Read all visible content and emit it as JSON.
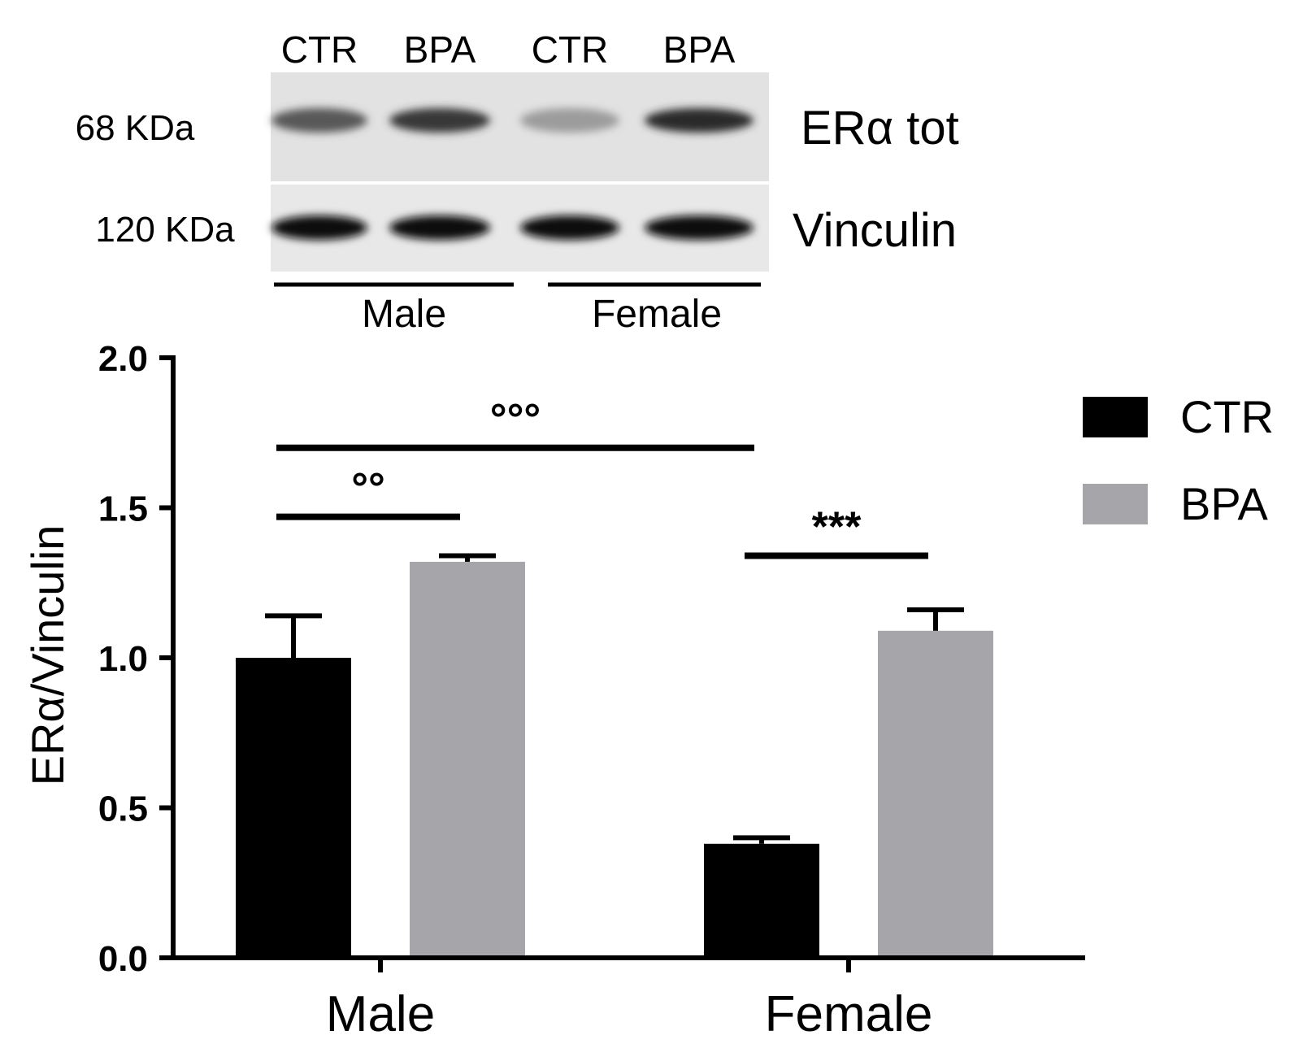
{
  "blot": {
    "lane_labels": [
      "CTR",
      "BPA",
      "CTR",
      "BPA"
    ],
    "rows": [
      {
        "kda": "68 KDa",
        "protein": "ERα tot",
        "band_intensity": [
          0.65,
          0.8,
          0.35,
          0.85
        ]
      },
      {
        "kda": "120 KDa",
        "protein": "Vinculin",
        "band_intensity": [
          1.0,
          1.0,
          1.0,
          1.0
        ]
      }
    ],
    "groups": [
      "Male",
      "Female"
    ]
  },
  "chart_data": {
    "type": "bar",
    "categories": [
      "Male",
      "Female"
    ],
    "series": [
      {
        "name": "CTR",
        "color": "#000000",
        "values": [
          1.0,
          0.38
        ],
        "errors": [
          0.14,
          0.02
        ]
      },
      {
        "name": "BPA",
        "color": "#a6a5aa",
        "values": [
          1.32,
          1.09
        ],
        "errors": [
          0.02,
          0.07
        ]
      }
    ],
    "title": "",
    "xlabel": "",
    "ylabel": "ERα/Vinculin",
    "ylim": [
      0,
      2.0
    ],
    "yticks": [
      "0.0",
      "0.5",
      "1.0",
      "1.5",
      "2.0"
    ],
    "legend_position": "top-right",
    "grid": false,
    "annotations": [
      {
        "label": "°°°",
        "from": "Male CTR",
        "to": "Female CTR",
        "y": 1.7
      },
      {
        "label": "°°",
        "from": "Male CTR",
        "to": "Male BPA",
        "y": 1.47
      },
      {
        "label": "***",
        "from": "Female CTR",
        "to": "Female BPA",
        "y": 1.34
      }
    ]
  }
}
